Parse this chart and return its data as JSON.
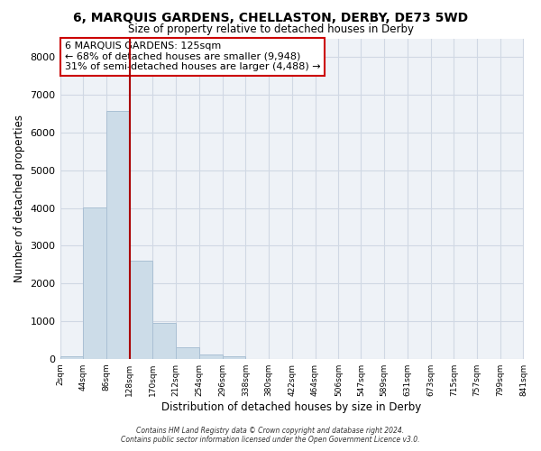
{
  "title": "6, MARQUIS GARDENS, CHELLASTON, DERBY, DE73 5WD",
  "subtitle": "Size of property relative to detached houses in Derby",
  "xlabel": "Distribution of detached houses by size in Derby",
  "ylabel": "Number of detached properties",
  "bar_color": "#ccdce8",
  "bar_edge_color": "#aac0d4",
  "vline_x": 128,
  "vline_color": "#aa0000",
  "bin_edges": [
    2,
    44,
    86,
    128,
    170,
    212,
    254,
    296,
    338,
    380,
    422,
    464,
    506,
    547,
    589,
    631,
    673,
    715,
    757,
    799,
    841
  ],
  "bar_heights": [
    55,
    4020,
    6580,
    2610,
    960,
    310,
    110,
    55,
    0,
    0,
    0,
    0,
    0,
    0,
    0,
    0,
    0,
    0,
    0,
    0
  ],
  "ylim": [
    0,
    8500
  ],
  "yticks": [
    0,
    1000,
    2000,
    3000,
    4000,
    5000,
    6000,
    7000,
    8000
  ],
  "annotation_title": "6 MARQUIS GARDENS: 125sqm",
  "annotation_line1": "← 68% of detached houses are smaller (9,948)",
  "annotation_line2": "31% of semi-detached houses are larger (4,488) →",
  "annotation_box_color": "white",
  "annotation_box_edge_color": "#cc0000",
  "footer1": "Contains HM Land Registry data © Crown copyright and database right 2024.",
  "footer2": "Contains public sector information licensed under the Open Government Licence v3.0.",
  "background_color": "#ffffff",
  "plot_bg_color": "#eef2f7",
  "grid_color": "#d0d8e4"
}
